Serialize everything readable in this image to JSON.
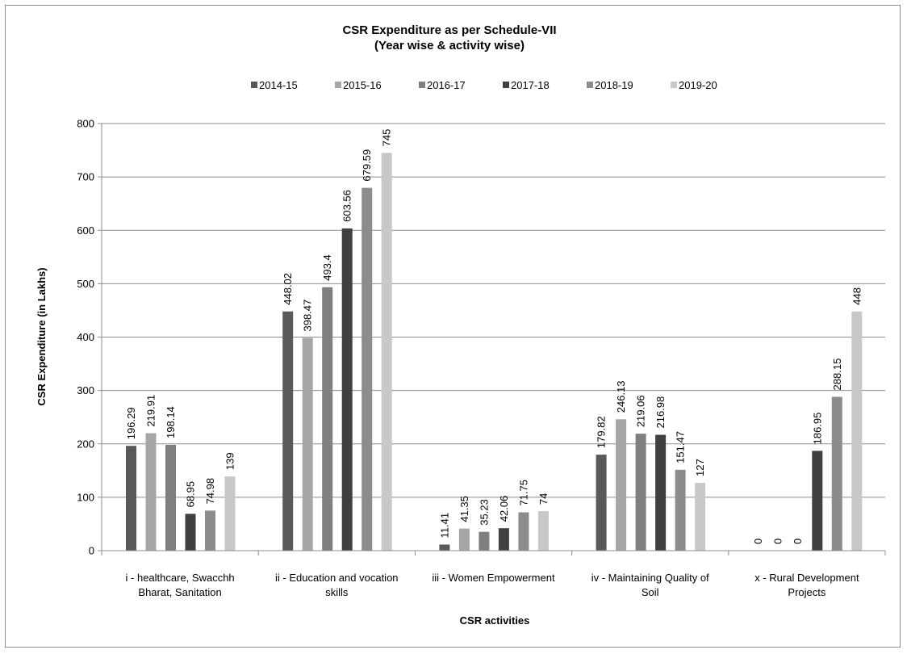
{
  "chart_data": {
    "type": "bar",
    "title": "CSR Expenditure as per Schedule-VII",
    "subtitle": "(Year wise & activity wise)",
    "xlabel": "CSR activities",
    "ylabel": "CSR Expenditure (in Lakhs)",
    "ylim": [
      0,
      800
    ],
    "yticks": [
      "0",
      "100",
      "200",
      "300",
      "400",
      "500",
      "600",
      "700",
      "800"
    ],
    "grid": true,
    "legend_position": "top",
    "categories": [
      [
        "i - healthcare, Swacchh",
        "Bharat, Sanitation"
      ],
      [
        "ii - Education and vocation",
        "skills"
      ],
      [
        "iii - Women Empowerment"
      ],
      [
        "iv - Maintaining Quality of",
        "Soil"
      ],
      [
        "x - Rural Development",
        "Projects"
      ]
    ],
    "series": [
      {
        "name": "2014-15",
        "color": "#595959",
        "values": [
          196.29,
          448.02,
          11.41,
          179.82,
          0
        ],
        "labels": [
          "196.29",
          "448.02",
          "11.41",
          "179.82",
          "0"
        ]
      },
      {
        "name": "2015-16",
        "color": "#a6a6a6",
        "values": [
          219.91,
          398.47,
          41.35,
          246.13,
          0
        ],
        "labels": [
          "219.91",
          "398.47",
          "41.35",
          "246.13",
          "0"
        ]
      },
      {
        "name": "2016-17",
        "color": "#7f7f7f",
        "values": [
          198.14,
          493.4,
          35.23,
          219.06,
          0
        ],
        "labels": [
          "198.14",
          "493.4",
          "35.23",
          "219.06",
          "0"
        ]
      },
      {
        "name": "2017-18",
        "color": "#404040",
        "values": [
          68.95,
          603.56,
          42.06,
          216.98,
          186.95
        ],
        "labels": [
          "68.95",
          "603.56",
          "42.06",
          "216.98",
          "186.95"
        ]
      },
      {
        "name": "2018-19",
        "color": "#8c8c8c",
        "values": [
          74.98,
          679.59,
          71.75,
          151.47,
          288.15
        ],
        "labels": [
          "74.98",
          "679.59",
          "71.75",
          "151.47",
          "288.15"
        ]
      },
      {
        "name": "2019-20",
        "color": "#c8c8c8",
        "values": [
          139,
          745,
          74,
          127,
          448
        ],
        "labels": [
          "139",
          "745",
          "74",
          "127",
          "448"
        ]
      }
    ]
  }
}
